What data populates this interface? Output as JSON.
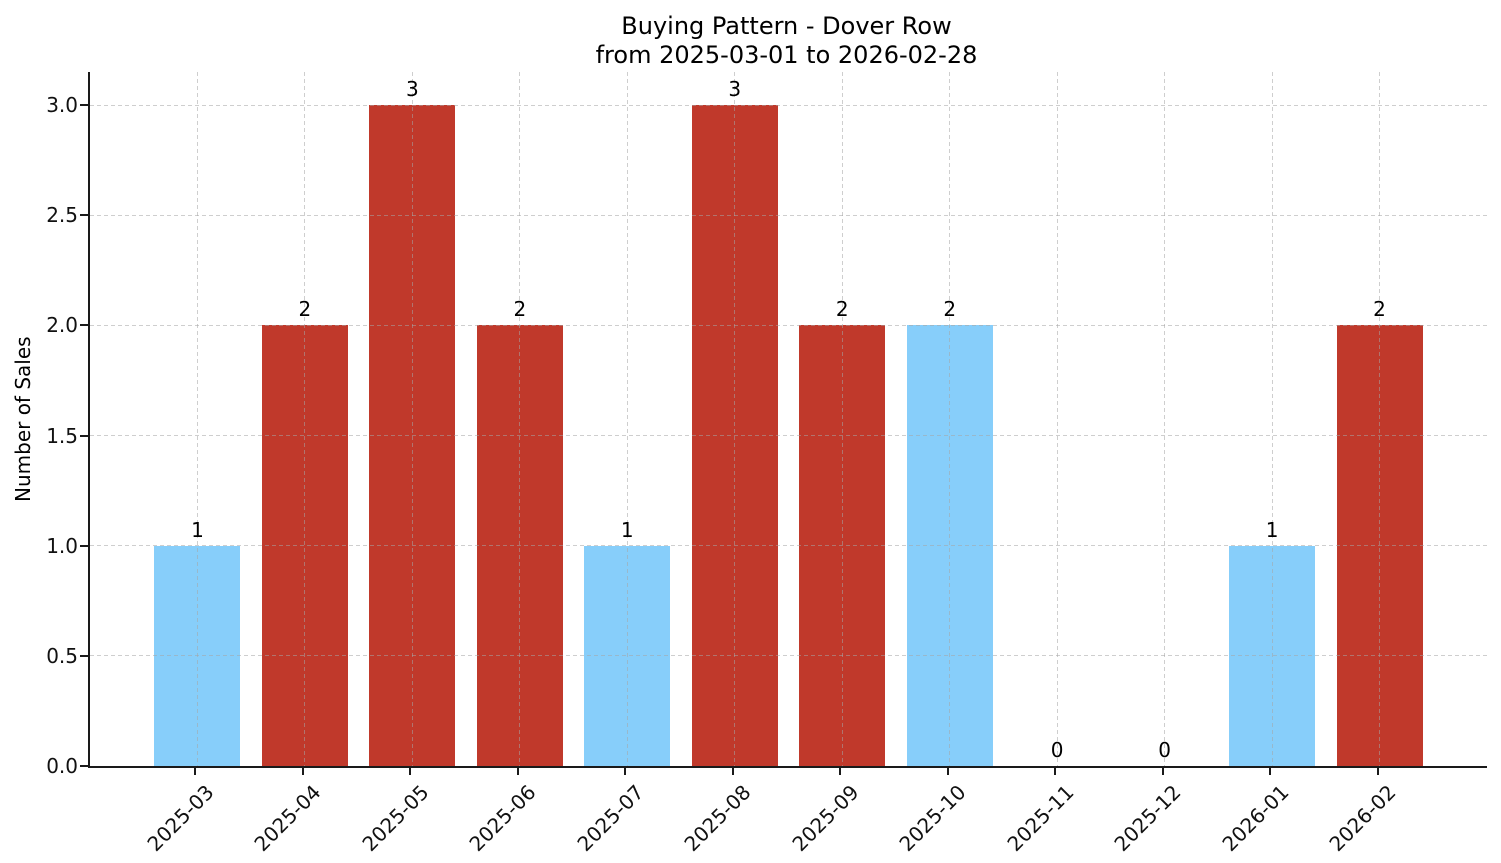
{
  "chart_data": {
    "type": "bar",
    "title": "Buying Pattern - Dover Row",
    "subtitle": "from 2025-03-01 to 2026-02-28",
    "categories": [
      "2025-03",
      "2025-04",
      "2025-05",
      "2025-06",
      "2025-07",
      "2025-08",
      "2025-09",
      "2025-10",
      "2025-11",
      "2025-12",
      "2026-01",
      "2026-02"
    ],
    "values": [
      1,
      2,
      3,
      2,
      1,
      3,
      2,
      2,
      0,
      0,
      1,
      2
    ],
    "value_labels": [
      "1",
      "2",
      "3",
      "2",
      "1",
      "3",
      "2",
      "2",
      "0",
      "0",
      "1",
      "2"
    ],
    "bar_colors": [
      "#87CEFA",
      "#C0392B",
      "#C0392B",
      "#C0392B",
      "#87CEFA",
      "#C0392B",
      "#C0392B",
      "#87CEFA",
      null,
      null,
      "#87CEFA",
      "#C0392B"
    ],
    "xlabel": "",
    "ylabel": "Number of Sales",
    "yticks": [
      "0.0",
      "0.5",
      "1.0",
      "1.5",
      "2.0",
      "2.5",
      "3.0"
    ],
    "ylim": [
      0,
      3.15
    ],
    "legend": null,
    "grid": {
      "style": "dashed",
      "axis": "both",
      "color_over_white": "#d4d4d4"
    },
    "accent_colors": {
      "highlight_blue": "#87CEFA",
      "default_red": "#C0392B"
    }
  }
}
